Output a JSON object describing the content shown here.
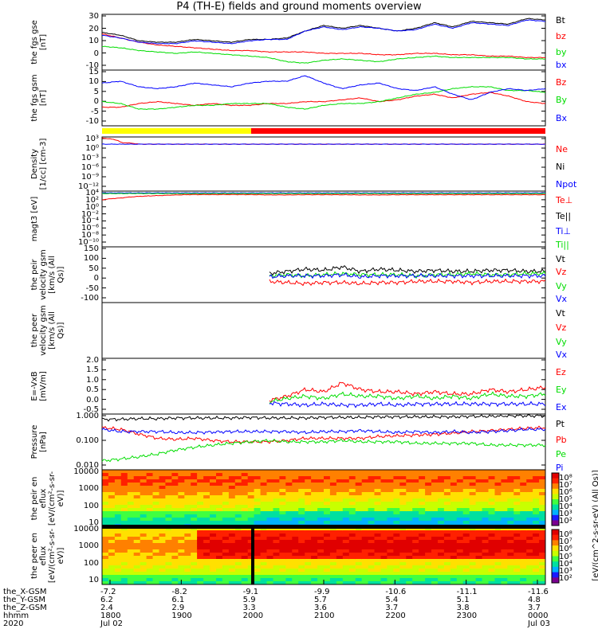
{
  "title": "P4 (TH-E) fields and ground moments overview",
  "colors": {
    "black": "#000000",
    "red": "#ff0000",
    "green": "#00dd00",
    "blue": "#0000ff",
    "yellow": "#ffff00"
  },
  "chart_data": [
    {
      "type": "line",
      "ylabel": "the fgs gse [nT]",
      "ylim": [
        -10,
        30
      ],
      "yticks": [
        "30",
        "20",
        "10",
        "0",
        "-10"
      ],
      "series": [
        {
          "name": "Bt",
          "color": "black",
          "values": [
            17,
            15,
            11,
            10,
            10,
            12,
            11,
            10,
            12,
            12,
            13,
            18,
            22,
            20,
            22,
            20,
            18,
            20,
            24,
            21,
            25,
            24,
            23,
            27,
            26
          ]
        },
        {
          "name": "bz",
          "color": "red",
          "values": [
            16,
            13,
            10,
            8,
            7,
            6,
            5,
            4,
            4,
            3,
            3,
            3,
            2,
            2,
            2,
            1,
            1,
            2,
            2,
            1,
            1,
            0,
            0,
            -1,
            -1
          ]
        },
        {
          "name": "by",
          "color": "green",
          "values": [
            7,
            6,
            4,
            3,
            2,
            3,
            2,
            1,
            0,
            -1,
            -4,
            -5,
            -3,
            -2,
            -3,
            -4,
            -2,
            -1,
            0,
            -1,
            -1,
            -1,
            -1,
            -2,
            -2
          ]
        },
        {
          "name": "bx",
          "color": "blue",
          "values": [
            15,
            13,
            10,
            9,
            9,
            11,
            10,
            9,
            11,
            12,
            12,
            18,
            21,
            19,
            21,
            20,
            18,
            19,
            23,
            20,
            24,
            23,
            22,
            26,
            25
          ]
        }
      ]
    },
    {
      "type": "line",
      "ylabel": "the fgs gsm [nT]",
      "ylim": [
        -15,
        15
      ],
      "yticks": [
        "15",
        "10",
        "5",
        "0",
        "-5",
        "-10"
      ],
      "series": [
        {
          "name": "Bz",
          "color": "red",
          "values": [
            -5,
            -5,
            -3,
            -2,
            -3,
            -4,
            -3,
            -4,
            -4,
            -3,
            -3,
            -2,
            -2,
            -1,
            0,
            -2,
            -1,
            1,
            2,
            0,
            2,
            3,
            1,
            -2,
            -3
          ]
        },
        {
          "name": "By",
          "color": "green",
          "values": [
            -2,
            -3,
            -6,
            -6,
            -5,
            -4,
            -4,
            -3,
            -3,
            -3,
            -5,
            -6,
            -4,
            -3,
            -3,
            -2,
            0,
            2,
            3,
            5,
            6,
            6,
            4,
            4,
            3
          ]
        },
        {
          "name": "Bx",
          "color": "blue",
          "values": [
            8,
            9,
            6,
            5,
            6,
            8,
            7,
            6,
            8,
            9,
            9,
            12,
            8,
            5,
            7,
            8,
            5,
            4,
            6,
            2,
            -1,
            3,
            5,
            4,
            5
          ]
        }
      ]
    },
    {
      "type": "line",
      "ylabel": "Density [1/cc] [cm-3]",
      "yscale": "log",
      "ylim": [
        1e-12,
        1000
      ],
      "yticks": [
        "10³",
        "10⁰",
        "10⁻³",
        "10⁻⁶",
        "10⁻⁹",
        "10⁻¹²"
      ],
      "series": [
        {
          "name": "Ne",
          "color": "red",
          "values": [
            500,
            30,
            10,
            10,
            10,
            10,
            10,
            10,
            10,
            10,
            10,
            10,
            10,
            10,
            10,
            10,
            10,
            10,
            10,
            10,
            10,
            10,
            10,
            10,
            10
          ]
        },
        {
          "name": "Ni",
          "color": "black",
          "values": []
        },
        {
          "name": "Npot",
          "color": "blue",
          "values": [
            10,
            10,
            10,
            10,
            10,
            10,
            10,
            10,
            10,
            10,
            10,
            10,
            10,
            10,
            10,
            10,
            10,
            10,
            10,
            10,
            10,
            10,
            10,
            10,
            10
          ]
        }
      ]
    },
    {
      "type": "line",
      "ylabel": "magt3 [eV]",
      "yscale": "log",
      "ylim": [
        1e-12,
        10000.0
      ],
      "yticks": [
        "10⁴",
        "10²",
        "10⁰",
        "10⁻²",
        "10⁻⁴",
        "10⁻⁶",
        "10⁻⁸",
        "10⁻¹⁰"
      ],
      "series": [
        {
          "name": "Te⊥",
          "color": "red",
          "values": [
            30,
            100,
            300,
            500,
            800,
            1000,
            1000,
            1000,
            1000,
            800,
            800,
            900,
            900,
            900,
            800,
            800,
            900,
            900,
            900,
            900,
            900,
            900,
            900,
            900,
            900
          ]
        },
        {
          "name": "Te||",
          "color": "black",
          "values": []
        },
        {
          "name": "Ti⊥",
          "color": "blue",
          "values": [
            3000,
            3000,
            3000,
            3000,
            3000,
            3000,
            3000,
            3000,
            3000,
            3000,
            3000,
            3000,
            3000,
            3000,
            3000,
            3000,
            3000,
            3000,
            3000,
            3000,
            3000,
            3000,
            3000,
            3000,
            3000
          ]
        },
        {
          "name": "Ti||",
          "color": "green",
          "values": [
            2000,
            2000,
            2000,
            2000,
            2000,
            2000,
            2000,
            2000,
            2000,
            2000,
            2000,
            2000,
            2000,
            2000,
            2000,
            2000,
            2000,
            2000,
            2000,
            2000,
            2000,
            2000,
            2000,
            2000,
            2000
          ]
        }
      ]
    },
    {
      "type": "line",
      "ylabel": "the peir velocity gsm [km/s (All Qs)]",
      "ylim": [
        -100,
        150
      ],
      "yticks": [
        "150",
        "100",
        "50",
        "0",
        "-50",
        "-100"
      ],
      "start_index": 9,
      "series": [
        {
          "name": "Vt",
          "color": "black",
          "values": [
            null,
            null,
            null,
            null,
            null,
            null,
            null,
            null,
            null,
            30,
            40,
            50,
            45,
            60,
            40,
            50,
            45,
            40,
            45,
            40,
            40,
            45,
            45,
            40,
            40
          ]
        },
        {
          "name": "Vz",
          "color": "red",
          "values": [
            null,
            null,
            null,
            null,
            null,
            null,
            null,
            null,
            null,
            -5,
            -10,
            -15,
            -10,
            -10,
            -15,
            -10,
            -10,
            -5,
            -5,
            -5,
            -10,
            -5,
            -5,
            -5,
            -5
          ]
        },
        {
          "name": "Vy",
          "color": "green",
          "values": [
            null,
            null,
            null,
            null,
            null,
            null,
            null,
            null,
            null,
            20,
            25,
            20,
            25,
            30,
            25,
            25,
            25,
            20,
            25,
            25,
            30,
            25,
            25,
            30,
            30
          ]
        },
        {
          "name": "Vx",
          "color": "blue",
          "values": [
            null,
            null,
            null,
            null,
            null,
            null,
            null,
            null,
            null,
            15,
            20,
            20,
            20,
            25,
            15,
            20,
            20,
            20,
            20,
            20,
            20,
            20,
            20,
            20,
            20
          ]
        }
      ]
    },
    {
      "type": "line",
      "ylabel": "the peer velocity gsm [km/s (All Qs)]",
      "ylim": [
        0,
        1
      ],
      "yticks": [],
      "series": [
        {
          "name": "Vt",
          "color": "black",
          "values": []
        },
        {
          "name": "Vz",
          "color": "red",
          "values": []
        },
        {
          "name": "Vy",
          "color": "green",
          "values": []
        },
        {
          "name": "Vx",
          "color": "blue",
          "values": []
        }
      ]
    },
    {
      "type": "line",
      "ylabel": "E=-VxB [mV/m]",
      "ylim": [
        -0.5,
        2.0
      ],
      "yticks": [
        "2.0",
        "1.5",
        "1.0",
        "0.5",
        "0.0",
        "-0.5"
      ],
      "series": [
        {
          "name": "Ez",
          "color": "red",
          "values": [
            null,
            null,
            null,
            null,
            null,
            null,
            null,
            null,
            null,
            0.1,
            0.3,
            0.6,
            0.5,
            0.9,
            0.6,
            0.5,
            0.5,
            0.4,
            0.5,
            0.4,
            0.4,
            0.6,
            0.5,
            0.6,
            0.7
          ]
        },
        {
          "name": "Ey",
          "color": "green",
          "values": [
            null,
            null,
            null,
            null,
            null,
            null,
            null,
            null,
            null,
            0.05,
            0.2,
            0.3,
            0.2,
            0.4,
            0.3,
            0.3,
            0.2,
            0.3,
            0.2,
            0.3,
            0.2,
            0.4,
            0.3,
            0.3,
            0.4
          ]
        },
        {
          "name": "Ex",
          "color": "blue",
          "values": [
            null,
            null,
            null,
            null,
            null,
            null,
            null,
            null,
            null,
            0.0,
            -0.05,
            -0.1,
            -0.05,
            -0.1,
            -0.1,
            -0.05,
            -0.1,
            -0.05,
            -0.05,
            -0.05,
            -0.05,
            -0.05,
            -0.05,
            -0.05,
            -0.05
          ]
        }
      ]
    },
    {
      "type": "line",
      "ylabel": "Pressure [nPa]",
      "yscale": "log",
      "ylim": [
        0.004,
        1.2
      ],
      "yticks": [
        "1.000",
        "0.100",
        "0.010"
      ],
      "series": [
        {
          "name": "Pt",
          "color": "black",
          "values": [
            0.7,
            0.7,
            0.75,
            0.75,
            0.8,
            0.8,
            0.8,
            0.8,
            0.85,
            0.8,
            0.8,
            0.8,
            0.85,
            0.85,
            0.85,
            0.9,
            0.9,
            0.9,
            0.9,
            0.9,
            0.95,
            0.95,
            1.0,
            1.0,
            1.0
          ]
        },
        {
          "name": "Pb",
          "color": "red",
          "values": [
            0.3,
            0.25,
            0.15,
            0.1,
            0.09,
            0.1,
            0.08,
            0.07,
            0.07,
            0.07,
            0.08,
            0.1,
            0.1,
            0.1,
            0.1,
            0.12,
            0.13,
            0.14,
            0.15,
            0.17,
            0.2,
            0.22,
            0.25,
            0.28,
            0.3
          ]
        },
        {
          "name": "Pe",
          "color": "green",
          "values": [
            0.01,
            0.012,
            0.015,
            0.02,
            0.03,
            0.04,
            0.05,
            0.06,
            0.07,
            0.08,
            0.07,
            0.07,
            0.07,
            0.08,
            0.07,
            0.07,
            0.07,
            0.06,
            0.06,
            0.06,
            0.06,
            0.05,
            0.05,
            0.05,
            0.05
          ]
        },
        {
          "name": "Pi",
          "color": "blue",
          "values": [
            0.25,
            0.2,
            0.2,
            0.2,
            0.18,
            0.18,
            0.19,
            0.2,
            0.2,
            0.2,
            0.2,
            0.18,
            0.2,
            0.2,
            0.22,
            0.2,
            0.18,
            0.2,
            0.18,
            0.2,
            0.18,
            0.2,
            0.22,
            0.25,
            0.25
          ]
        }
      ]
    },
    {
      "type": "heatmap",
      "ylabel": "the peir en eflux [eV/(cm²-s-sr-eV)]",
      "yscale": "log",
      "ylim": [
        5,
        25000
      ],
      "yticks": [
        "10000",
        "1000",
        "100",
        "10"
      ]
    },
    {
      "type": "heatmap",
      "ylabel": "the peer en eflux [eV/(cm²-s-sr-eV)]",
      "yscale": "log",
      "ylim": [
        7,
        20000
      ],
      "yticks": [
        "10000",
        "1000",
        "100",
        "10"
      ]
    }
  ],
  "colorbar": {
    "label": "[eV/(cm^2-s-sr-eV) (All Qs)]",
    "ticks_ion": [
      "10⁸",
      "10⁷",
      "10⁶",
      "10⁵",
      "10⁴",
      "10³",
      "10²"
    ],
    "ticks_ele": [
      "10⁸",
      "10⁷",
      "10⁶",
      "10⁵",
      "10⁴",
      "10³",
      "10²"
    ]
  },
  "xaxis": {
    "ticks": [
      "1800",
      "1900",
      "2000",
      "2100",
      "2200",
      "2300",
      "0000"
    ],
    "rows": [
      {
        "label": "the_X-GSM",
        "values": [
          "-7.2",
          "-8.2",
          "-9.1",
          "-9.9",
          "-10.6",
          "-11.1",
          "-11.6"
        ]
      },
      {
        "label": "the_Y-GSM",
        "values": [
          "6.2",
          "6.1",
          "5.9",
          "5.7",
          "5.4",
          "5.1",
          "4.8"
        ]
      },
      {
        "label": "the_Z-GSM",
        "values": [
          "2.4",
          "2.9",
          "3.3",
          "3.6",
          "3.7",
          "3.8",
          "3.7"
        ]
      },
      {
        "label": "hhmm",
        "values": [
          "1800",
          "1900",
          "2000",
          "2100",
          "2200",
          "2300",
          "0000"
        ]
      },
      {
        "label": "2020",
        "values": [
          "Jul 02",
          "",
          "",
          "",
          "",
          "",
          "Jul 03"
        ]
      }
    ]
  }
}
